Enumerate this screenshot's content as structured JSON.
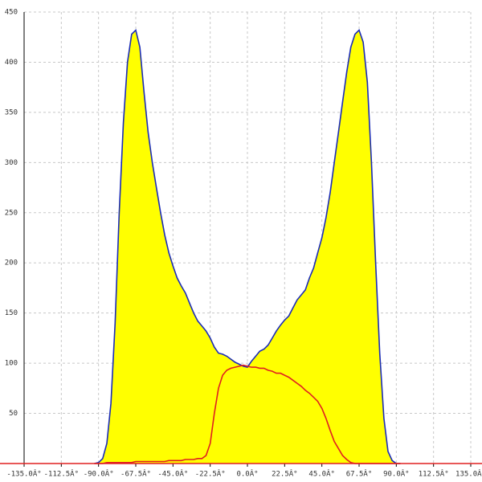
{
  "chart_data": {
    "type": "line",
    "x": [
      -92.5,
      -90,
      -87.5,
      -85,
      -82.5,
      -80,
      -77.5,
      -75,
      -72.5,
      -70,
      -67.5,
      -65,
      -62.5,
      -60,
      -57.5,
      -55,
      -52.5,
      -50,
      -47.5,
      -45,
      -42.5,
      -40,
      -37.5,
      -35,
      -32.5,
      -30,
      -27.5,
      -25,
      -22.5,
      -20,
      -17.5,
      -15,
      -12.5,
      -10,
      -7.5,
      -5,
      -2.5,
      0,
      2.5,
      5,
      7.5,
      10,
      12.5,
      15,
      17.5,
      20,
      22.5,
      25,
      27.5,
      30,
      32.5,
      35,
      37.5,
      40,
      42.5,
      45,
      47.5,
      50,
      52.5,
      55,
      57.5,
      60,
      62.5,
      65,
      67.5,
      70,
      72.5,
      75,
      77.5,
      80,
      82.5,
      85,
      87.5,
      90,
      92.5
    ],
    "series": [
      {
        "color": "#1a2bb8",
        "fill": "#ffff00",
        "values": [
          0,
          1,
          5,
          20,
          60,
          140,
          250,
          340,
          400,
          428,
          432,
          415,
          370,
          330,
          300,
          275,
          250,
          228,
          210,
          197,
          185,
          177,
          170,
          160,
          150,
          142,
          137,
          132,
          125,
          116,
          110,
          109,
          107,
          104,
          101,
          99,
          97,
          96,
          102,
          107,
          112,
          114,
          118,
          125,
          132,
          138,
          143,
          147,
          155,
          163,
          168,
          173,
          185,
          195,
          210,
          225,
          245,
          270,
          300,
          330,
          360,
          390,
          415,
          428,
          432,
          420,
          380,
          300,
          200,
          110,
          45,
          12,
          3,
          0,
          0
        ]
      },
      {
        "color": "#e02020",
        "values": [
          0,
          0,
          0,
          1,
          1,
          1,
          1,
          1,
          1,
          1,
          2,
          2,
          2,
          2,
          2,
          2,
          2,
          2,
          3,
          3,
          3,
          3,
          4,
          4,
          4,
          5,
          5,
          8,
          20,
          50,
          75,
          88,
          93,
          95,
          96,
          97,
          98,
          97,
          96,
          96,
          95,
          95,
          93,
          92,
          90,
          90,
          88,
          86,
          83,
          80,
          77,
          73,
          70,
          66,
          62,
          55,
          45,
          33,
          22,
          15,
          8,
          4,
          1,
          0,
          0,
          0,
          0,
          0,
          0,
          0,
          0,
          0,
          0,
          0,
          0
        ]
      }
    ],
    "xlim": [
      -135,
      135
    ],
    "xticks": [
      {
        "value": -135,
        "label": "-135.0Â°"
      },
      {
        "value": -112.5,
        "label": "-112.5Â°"
      },
      {
        "value": -90,
        "label": "-90.0Â°"
      },
      {
        "value": -67.5,
        "label": "-67.5Â°"
      },
      {
        "value": -45,
        "label": "-45.0Â°"
      },
      {
        "value": -22.5,
        "label": "-22.5Â°"
      },
      {
        "value": 0,
        "label": "0.0Â°"
      },
      {
        "value": 22.5,
        "label": "22.5Â°"
      },
      {
        "value": 45,
        "label": "45.0Â°"
      },
      {
        "value": 67.5,
        "label": "67.5Â°"
      },
      {
        "value": 90,
        "label": "90.0Â°"
      },
      {
        "value": 112.5,
        "label": "112.5Â°"
      },
      {
        "value": 135,
        "label": "135.0Â°"
      }
    ],
    "ylim": [
      0,
      450
    ],
    "yticks": [
      50,
      100,
      150,
      200,
      250,
      300,
      350,
      400,
      450
    ],
    "grid": true
  }
}
